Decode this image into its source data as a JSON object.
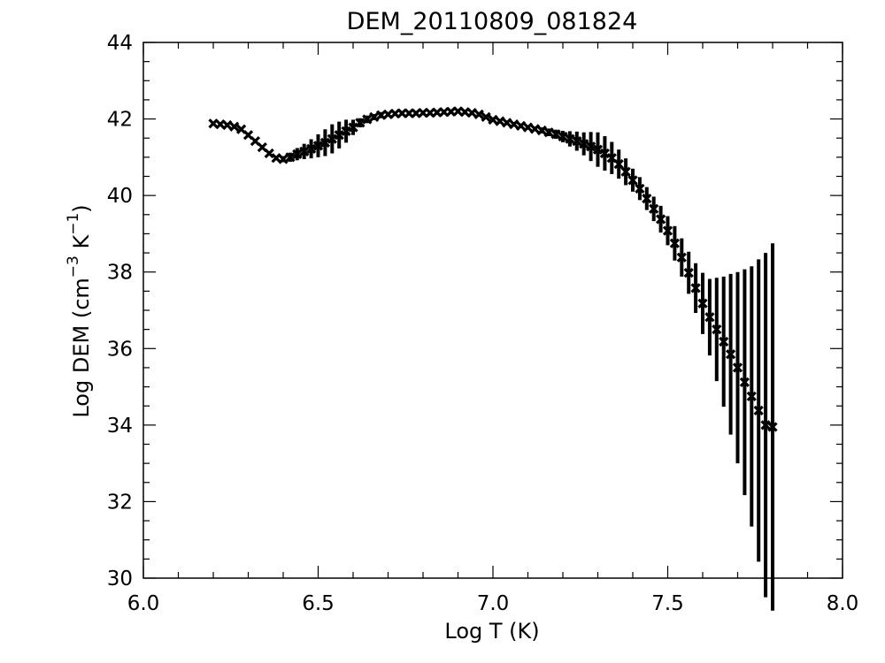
{
  "chart_data": {
    "type": "scatter",
    "title": "DEM_20110809_081824",
    "xlabel": "Log T (K)",
    "ylabel": {
      "prefix": "Log DEM (cm",
      "exp1": "−3",
      "mid": " K",
      "exp2": "−1",
      "suffix": ")"
    },
    "xlim": [
      6.0,
      8.0
    ],
    "ylim": [
      30,
      44
    ],
    "x_ticks": [
      "6.0",
      "6.5",
      "7.0",
      "7.5",
      "8.0"
    ],
    "y_ticks": [
      "30",
      "32",
      "34",
      "36",
      "38",
      "40",
      "42",
      "44"
    ],
    "grid": false,
    "legend": "none",
    "marker_color": "#000000",
    "x": [
      6.2,
      6.22,
      6.24,
      6.26,
      6.28,
      6.3,
      6.32,
      6.34,
      6.36,
      6.38,
      6.4,
      6.42,
      6.44,
      6.46,
      6.48,
      6.5,
      6.52,
      6.54,
      6.56,
      6.58,
      6.6,
      6.62,
      6.64,
      6.66,
      6.68,
      6.7,
      6.72,
      6.74,
      6.76,
      6.78,
      6.8,
      6.82,
      6.84,
      6.86,
      6.88,
      6.9,
      6.92,
      6.94,
      6.96,
      6.98,
      7.0,
      7.02,
      7.04,
      7.06,
      7.08,
      7.1,
      7.12,
      7.14,
      7.16,
      7.18,
      7.2,
      7.22,
      7.24,
      7.26,
      7.28,
      7.3,
      7.32,
      7.34,
      7.36,
      7.38,
      7.4,
      7.42,
      7.44,
      7.46,
      7.48,
      7.5,
      7.52,
      7.54,
      7.56,
      7.58,
      7.6,
      7.62,
      7.64,
      7.66,
      7.68,
      7.7,
      7.72,
      7.74,
      7.76,
      7.78,
      7.8
    ],
    "y": [
      41.88,
      41.86,
      41.84,
      41.8,
      41.73,
      41.58,
      41.42,
      41.26,
      41.1,
      40.98,
      40.95,
      41.0,
      41.08,
      41.15,
      41.22,
      41.3,
      41.38,
      41.48,
      41.58,
      41.68,
      41.78,
      41.9,
      41.99,
      42.05,
      42.1,
      42.12,
      42.14,
      42.15,
      42.15,
      42.15,
      42.16,
      42.16,
      42.17,
      42.18,
      42.19,
      42.2,
      42.18,
      42.16,
      42.12,
      42.05,
      41.98,
      41.94,
      41.9,
      41.86,
      41.82,
      41.78,
      41.74,
      41.7,
      41.65,
      41.6,
      41.54,
      41.48,
      41.42,
      41.35,
      41.28,
      41.2,
      41.1,
      40.98,
      40.82,
      40.62,
      40.4,
      40.18,
      39.92,
      39.65,
      39.38,
      39.08,
      38.75,
      38.38,
      37.98,
      37.58,
      37.18,
      36.82,
      36.5,
      36.18,
      35.85,
      35.5,
      35.12,
      34.75,
      34.38,
      34.0,
      33.95
    ],
    "y_err": [
      0.05,
      0.05,
      0.05,
      0.05,
      0.05,
      0.06,
      0.06,
      0.06,
      0.06,
      0.06,
      0.08,
      0.12,
      0.16,
      0.2,
      0.25,
      0.3,
      0.35,
      0.38,
      0.35,
      0.3,
      0.2,
      0.12,
      0.1,
      0.08,
      0.08,
      0.06,
      0.06,
      0.06,
      0.06,
      0.06,
      0.06,
      0.06,
      0.06,
      0.06,
      0.06,
      0.06,
      0.06,
      0.06,
      0.06,
      0.06,
      0.06,
      0.06,
      0.06,
      0.06,
      0.06,
      0.06,
      0.06,
      0.08,
      0.1,
      0.12,
      0.15,
      0.2,
      0.25,
      0.3,
      0.38,
      0.45,
      0.45,
      0.42,
      0.38,
      0.35,
      0.3,
      0.3,
      0.3,
      0.32,
      0.35,
      0.38,
      0.45,
      0.5,
      0.55,
      0.65,
      0.8,
      1.0,
      1.35,
      1.7,
      2.1,
      2.5,
      2.95,
      3.4,
      3.95,
      4.5,
      4.8
    ]
  }
}
